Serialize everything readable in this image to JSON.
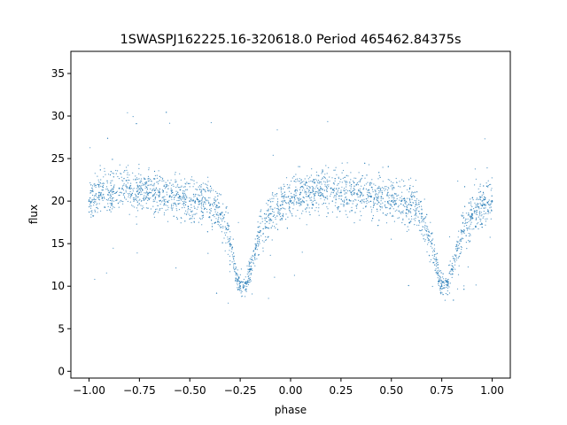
{
  "chart_data": {
    "type": "scatter",
    "title": "1SWASPJ162225.16-320618.0 Period 465462.84375s",
    "xlabel": "phase",
    "ylabel": "flux",
    "xlim": [
      -1.09,
      1.09
    ],
    "ylim": [
      -0.8,
      37.6
    ],
    "x_ticks": [
      -1.0,
      -0.75,
      -0.5,
      -0.25,
      0.0,
      0.25,
      0.5,
      0.75,
      1.0
    ],
    "x_tick_labels": [
      "−1.00",
      "−0.75",
      "−0.50",
      "−0.25",
      "0.00",
      "0.25",
      "0.50",
      "0.75",
      "1.00"
    ],
    "y_ticks": [
      0,
      5,
      10,
      15,
      20,
      25,
      30,
      35
    ],
    "y_tick_labels": [
      "0",
      "5",
      "10",
      "15",
      "20",
      "25",
      "30",
      "35"
    ],
    "grid": false,
    "legend": "none",
    "point_color": "#1f77b4",
    "series": [
      {
        "x": [
          -1.0,
          -0.95,
          -0.9,
          -0.85,
          -0.8,
          -0.75,
          -0.7,
          -0.65,
          -0.6,
          -0.55,
          -0.5,
          -0.45,
          -0.4,
          -0.35,
          -0.3,
          -0.27,
          -0.25,
          -0.22,
          -0.2,
          -0.15,
          -0.1,
          -0.05,
          0.0,
          0.05,
          0.1,
          0.15,
          0.2,
          0.25,
          0.3,
          0.35,
          0.4,
          0.45,
          0.5,
          0.55,
          0.6,
          0.65,
          0.7,
          0.73,
          0.75,
          0.78,
          0.8,
          0.85,
          0.9,
          0.95,
          1.0
        ],
        "y": [
          20.0,
          21.0,
          21.0,
          21.5,
          21.5,
          21.0,
          21.0,
          21.0,
          20.5,
          20.5,
          20.0,
          20.0,
          19.5,
          18.5,
          15.0,
          11.5,
          10.0,
          10.5,
          12.0,
          16.5,
          18.5,
          19.5,
          20.0,
          21.0,
          21.0,
          21.5,
          21.5,
          21.0,
          21.0,
          21.0,
          20.5,
          20.5,
          20.0,
          20.0,
          19.5,
          18.5,
          15.0,
          11.5,
          10.0,
          10.5,
          12.0,
          16.5,
          18.5,
          19.5,
          20.0
        ]
      }
    ]
  }
}
